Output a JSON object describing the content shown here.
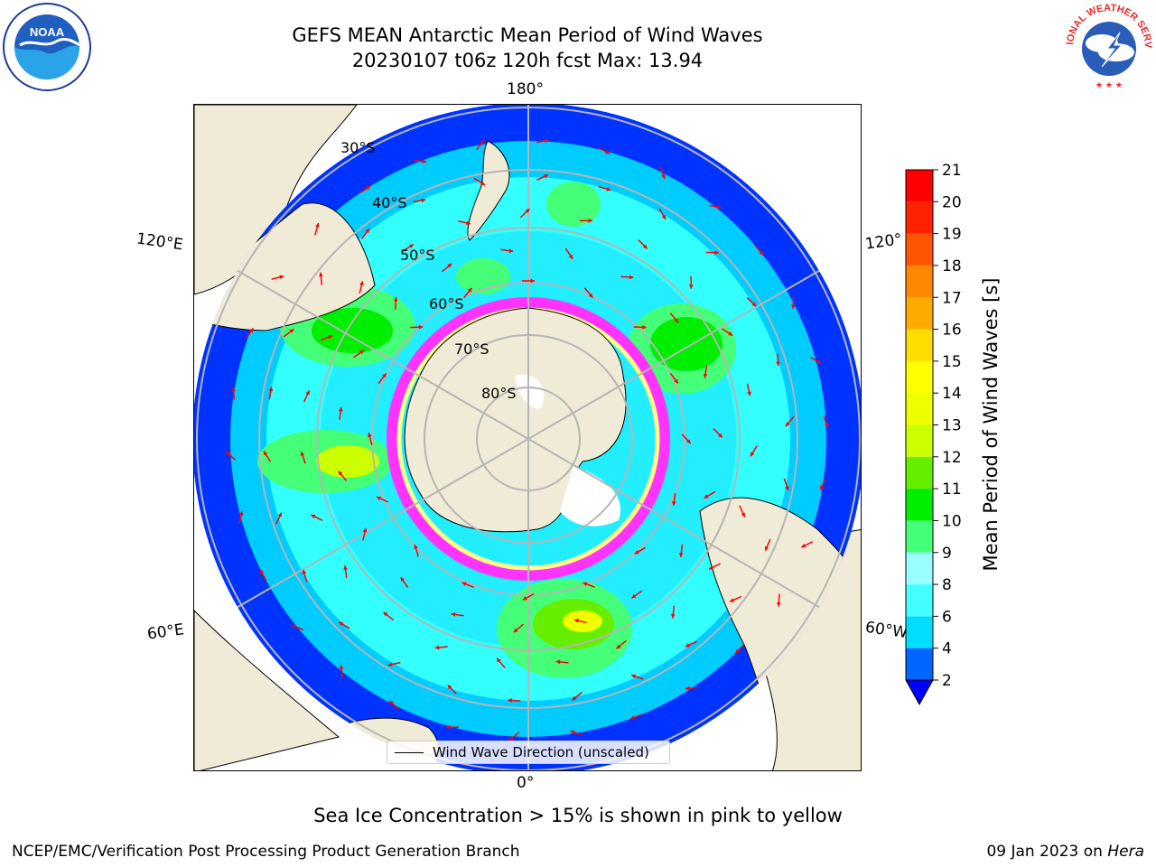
{
  "title": {
    "line1": "GEFS MEAN Antarctic Mean Period of Wind Waves",
    "line2": "20230107 t06z 120h fcst   Max: 13.94"
  },
  "map": {
    "projection": "south-polar-stereographic",
    "longitude_labels": {
      "top": "180°",
      "bottom": "0°",
      "left_upper": "120°E",
      "left_lower": "60°E",
      "right_upper": "120°",
      "right_lower": "60°W"
    },
    "latitude_labels": [
      "30°S",
      "40°S",
      "50°S",
      "60°S",
      "70°S",
      "80°S"
    ],
    "colors": {
      "land": "#efebd6",
      "ice_low": "#ff33ff",
      "ice_high": "#ffff66",
      "arrow": "#ff0000",
      "grid": "#b5b5b5"
    }
  },
  "legend": {
    "label": "Wind Wave Direction (unscaled)"
  },
  "colorbar": {
    "label": "Mean Period of Wind Waves [s]",
    "tick_labels": [
      "2",
      "4",
      "6",
      "8",
      "9",
      "10",
      "11",
      "12",
      "13",
      "14",
      "15",
      "16",
      "17",
      "18",
      "19",
      "20",
      "21"
    ],
    "colors": [
      "#0066ff",
      "#00ddff",
      "#44ffff",
      "#99ffff",
      "#44ff77",
      "#00ee00",
      "#66ee00",
      "#ccff00",
      "#eeff00",
      "#ffff00",
      "#ffdd00",
      "#ffaa00",
      "#ff8800",
      "#ff5500",
      "#ff2200",
      "#ff0000"
    ],
    "under_color": "#0000ff"
  },
  "notes": {
    "ice": "Sea Ice Concentration > 15% is shown in pink to yellow",
    "credit_left": "NCEP/EMC/Verification Post Processing Product Generation Branch",
    "credit_right_date": "09 Jan 2023 on",
    "credit_right_host": "Hera"
  },
  "logos": {
    "noaa_text": "NOAA",
    "nws_text": "NATIONAL WEATHER SERVICE"
  }
}
